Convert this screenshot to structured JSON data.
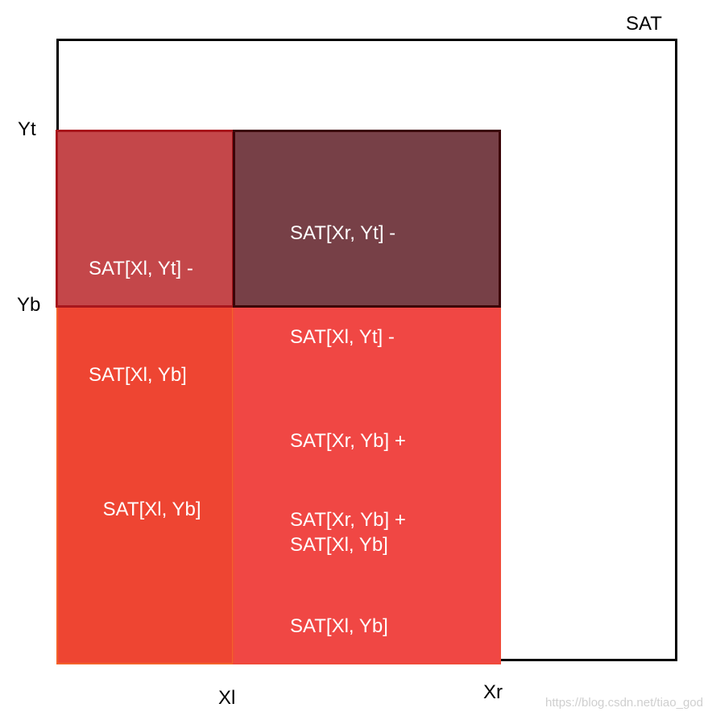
{
  "diagram": {
    "frame_label": "SAT",
    "axis_labels": {
      "yt": "Yt",
      "yb": "Yb",
      "xl": "Xl",
      "xr": "Xr"
    },
    "regions": {
      "top_left": {
        "lines": [
          "SAT[Xl, Yt] -",
          "SAT[Xl, Yb]"
        ],
        "fill": "#c4474a",
        "border": "#a8161c"
      },
      "top_right": {
        "lines": [
          "SAT[Xr, Yt] -",
          "SAT[Xl, Yt] -",
          "SAT[Xr, Yb] +",
          "SAT[Xl, Yb]"
        ],
        "fill": "#774047",
        "border": "#3b0508"
      },
      "bottom_left": {
        "lines": [
          "SAT[Xl, Yb]"
        ],
        "fill": "#ee4532",
        "border": "#f4622a"
      },
      "bottom_right": {
        "lines": [
          "SAT[Xr, Yb] +",
          "SAT[Xl, Yb]"
        ],
        "fill": "#f04744",
        "border": "#f04a3a"
      }
    },
    "watermark": "https://blog.csdn.net/tiao_god"
  }
}
